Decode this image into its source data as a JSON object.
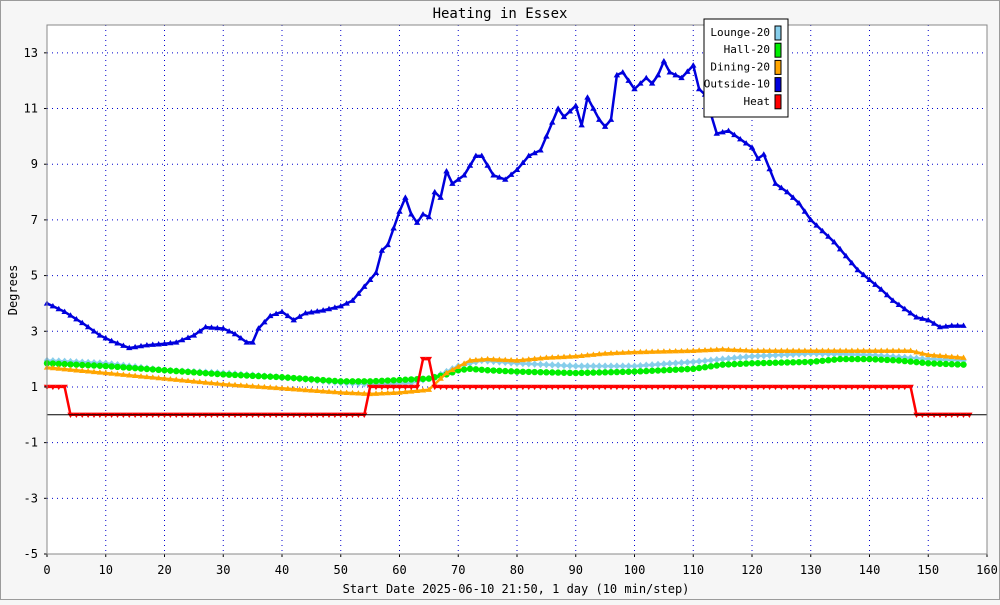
{
  "chart_data": {
    "type": "line",
    "title": "Heating in Essex",
    "xlabel": "Start Date 2025-06-10 21:50, 1 day (10 min/step)",
    "ylabel": "Degrees",
    "xlim": [
      0,
      160
    ],
    "ylim": [
      -5,
      14
    ],
    "x_ticks": [
      0,
      10,
      20,
      30,
      40,
      50,
      60,
      70,
      80,
      90,
      100,
      110,
      120,
      130,
      140,
      150,
      160
    ],
    "y_ticks": [
      -5,
      -3,
      -1,
      1,
      3,
      5,
      7,
      9,
      11,
      13
    ],
    "grid": true,
    "legend_position": "top-right",
    "series": [
      {
        "name": "Lounge-20",
        "color": "#87ceeb",
        "marker": "diamond",
        "points": [
          [
            0,
            1.95
          ],
          [
            10,
            1.85
          ],
          [
            20,
            1.6
          ],
          [
            30,
            1.5
          ],
          [
            40,
            1.35
          ],
          [
            50,
            1.15
          ],
          [
            55,
            1.1
          ],
          [
            62,
            1.15
          ],
          [
            66,
            1.35
          ],
          [
            70,
            1.75
          ],
          [
            74,
            1.95
          ],
          [
            80,
            1.85
          ],
          [
            90,
            1.75
          ],
          [
            100,
            1.75
          ],
          [
            110,
            1.9
          ],
          [
            120,
            2.1
          ],
          [
            130,
            2.2
          ],
          [
            140,
            2.15
          ],
          [
            150,
            2.0
          ],
          [
            156,
            1.95
          ]
        ]
      },
      {
        "name": "Hall-20",
        "color": "#00ee00",
        "marker": "circle",
        "points": [
          [
            0,
            1.85
          ],
          [
            10,
            1.75
          ],
          [
            20,
            1.6
          ],
          [
            30,
            1.45
          ],
          [
            40,
            1.35
          ],
          [
            50,
            1.2
          ],
          [
            55,
            1.2
          ],
          [
            60,
            1.25
          ],
          [
            65,
            1.3
          ],
          [
            68,
            1.45
          ],
          [
            70,
            1.6
          ],
          [
            72,
            1.65
          ],
          [
            75,
            1.6
          ],
          [
            80,
            1.55
          ],
          [
            90,
            1.5
          ],
          [
            100,
            1.55
          ],
          [
            110,
            1.65
          ],
          [
            115,
            1.8
          ],
          [
            120,
            1.85
          ],
          [
            130,
            1.9
          ],
          [
            135,
            2.0
          ],
          [
            140,
            2.0
          ],
          [
            145,
            1.95
          ],
          [
            150,
            1.85
          ],
          [
            156,
            1.8
          ]
        ]
      },
      {
        "name": "Dining-20",
        "color": "#ffa500",
        "marker": "triangle",
        "points": [
          [
            0,
            1.7
          ],
          [
            10,
            1.5
          ],
          [
            20,
            1.3
          ],
          [
            30,
            1.1
          ],
          [
            40,
            0.95
          ],
          [
            50,
            0.8
          ],
          [
            55,
            0.75
          ],
          [
            60,
            0.8
          ],
          [
            65,
            0.9
          ],
          [
            68,
            1.5
          ],
          [
            72,
            1.95
          ],
          [
            75,
            2.0
          ],
          [
            80,
            1.95
          ],
          [
            85,
            2.05
          ],
          [
            90,
            2.1
          ],
          [
            95,
            2.2
          ],
          [
            100,
            2.25
          ],
          [
            110,
            2.3
          ],
          [
            115,
            2.35
          ],
          [
            120,
            2.3
          ],
          [
            130,
            2.3
          ],
          [
            140,
            2.3
          ],
          [
            147,
            2.3
          ],
          [
            150,
            2.15
          ],
          [
            156,
            2.05
          ]
        ]
      },
      {
        "name": "Outside-10",
        "color": "#0000dd",
        "marker": "triangle",
        "points": [
          [
            0,
            4.0
          ],
          [
            3,
            3.7
          ],
          [
            6,
            3.3
          ],
          [
            9,
            2.85
          ],
          [
            11,
            2.65
          ],
          [
            14,
            2.4
          ],
          [
            17,
            2.5
          ],
          [
            20,
            2.55
          ],
          [
            22,
            2.6
          ],
          [
            25,
            2.85
          ],
          [
            27,
            3.15
          ],
          [
            30,
            3.1
          ],
          [
            32,
            2.9
          ],
          [
            34,
            2.6
          ],
          [
            35,
            2.6
          ],
          [
            36,
            3.1
          ],
          [
            38,
            3.55
          ],
          [
            40,
            3.7
          ],
          [
            42,
            3.4
          ],
          [
            44,
            3.65
          ],
          [
            47,
            3.75
          ],
          [
            50,
            3.9
          ],
          [
            52,
            4.1
          ],
          [
            54,
            4.6
          ],
          [
            56,
            5.1
          ],
          [
            57,
            5.9
          ],
          [
            58,
            6.1
          ],
          [
            60,
            7.3
          ],
          [
            61,
            7.8
          ],
          [
            62,
            7.2
          ],
          [
            63,
            6.9
          ],
          [
            64,
            7.2
          ],
          [
            65,
            7.1
          ],
          [
            66,
            8.0
          ],
          [
            67,
            7.8
          ],
          [
            68,
            8.75
          ],
          [
            69,
            8.3
          ],
          [
            71,
            8.6
          ],
          [
            73,
            9.3
          ],
          [
            74,
            9.3
          ],
          [
            76,
            8.6
          ],
          [
            78,
            8.45
          ],
          [
            80,
            8.8
          ],
          [
            82,
            9.3
          ],
          [
            84,
            9.5
          ],
          [
            86,
            10.5
          ],
          [
            87,
            11.0
          ],
          [
            88,
            10.7
          ],
          [
            90,
            11.1
          ],
          [
            91,
            10.4
          ],
          [
            92,
            11.4
          ],
          [
            94,
            10.6
          ],
          [
            95,
            10.35
          ],
          [
            96,
            10.6
          ],
          [
            97,
            12.2
          ],
          [
            98,
            12.3
          ],
          [
            100,
            11.7
          ],
          [
            102,
            12.1
          ],
          [
            103,
            11.9
          ],
          [
            104,
            12.2
          ],
          [
            105,
            12.7
          ],
          [
            106,
            12.3
          ],
          [
            108,
            12.1
          ],
          [
            110,
            12.55
          ],
          [
            111,
            11.7
          ],
          [
            112,
            11.5
          ],
          [
            114,
            10.1
          ],
          [
            116,
            10.2
          ],
          [
            118,
            9.9
          ],
          [
            120,
            9.6
          ],
          [
            121,
            9.2
          ],
          [
            122,
            9.35
          ],
          [
            124,
            8.3
          ],
          [
            126,
            8.0
          ],
          [
            128,
            7.6
          ],
          [
            130,
            7.0
          ],
          [
            132,
            6.6
          ],
          [
            134,
            6.2
          ],
          [
            136,
            5.7
          ],
          [
            138,
            5.2
          ],
          [
            140,
            4.85
          ],
          [
            142,
            4.5
          ],
          [
            144,
            4.1
          ],
          [
            146,
            3.8
          ],
          [
            148,
            3.5
          ],
          [
            150,
            3.4
          ],
          [
            152,
            3.15
          ],
          [
            154,
            3.2
          ],
          [
            156,
            3.2
          ]
        ]
      },
      {
        "name": "Heat",
        "color": "#ff0000",
        "marker": "triangle-down",
        "points": [
          [
            0,
            1.0
          ],
          [
            3,
            1.0
          ],
          [
            4,
            0.0
          ],
          [
            54,
            0.0
          ],
          [
            55,
            1.0
          ],
          [
            63,
            1.0
          ],
          [
            64,
            2.0
          ],
          [
            65,
            2.0
          ],
          [
            66,
            1.0
          ],
          [
            147,
            1.0
          ],
          [
            148,
            0.0
          ],
          [
            157,
            0.0
          ]
        ]
      }
    ]
  }
}
